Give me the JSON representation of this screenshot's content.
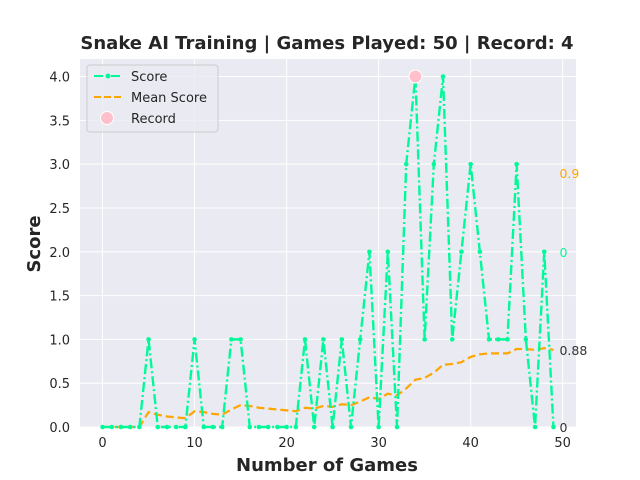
{
  "chart_data": {
    "type": "line",
    "title": "Snake AI Training | Games Played: 50 | Record: 4",
    "xlabel": "Number of Games",
    "ylabel": "Score",
    "xlim": [
      -2.45,
      51.45
    ],
    "ylim": [
      0,
      4.2
    ],
    "x_ticks": [
      0,
      10,
      20,
      30,
      40,
      50
    ],
    "y_ticks": [
      0.0,
      0.5,
      1.0,
      1.5,
      2.0,
      2.5,
      3.0,
      3.5,
      4.0
    ],
    "x_tick_labels": [
      "0",
      "10",
      "20",
      "30",
      "40",
      "50"
    ],
    "y_tick_labels": [
      "0.0",
      "0.5",
      "1.0",
      "1.5",
      "2.0",
      "2.5",
      "3.0",
      "3.5",
      "4.0"
    ],
    "grid": true,
    "legend_position": "top-left",
    "x": [
      0,
      1,
      2,
      3,
      4,
      5,
      6,
      7,
      8,
      9,
      10,
      11,
      12,
      13,
      14,
      15,
      16,
      17,
      18,
      19,
      20,
      21,
      22,
      23,
      24,
      25,
      26,
      27,
      28,
      29,
      30,
      31,
      32,
      33,
      34,
      35,
      36,
      37,
      38,
      39,
      40,
      41,
      42,
      43,
      44,
      45,
      46,
      47,
      48,
      49
    ],
    "series": [
      {
        "name": "Score",
        "color": "#00FA9A",
        "style": "dash-dot with point markers",
        "values": [
          0,
          0,
          0,
          0,
          0,
          1,
          0,
          0,
          0,
          0,
          1,
          0,
          0,
          0,
          1,
          1,
          0,
          0,
          0,
          0,
          0,
          0,
          1,
          0,
          1,
          0,
          1,
          0,
          1,
          2,
          0,
          2,
          0,
          3,
          4,
          1,
          3,
          4,
          1,
          2,
          3,
          2,
          1,
          1,
          1,
          3,
          1,
          0,
          2,
          0
        ]
      },
      {
        "name": "Mean Score",
        "color": "#FFA500",
        "style": "dashed",
        "values": [
          0,
          0,
          0,
          0,
          0,
          0.17,
          0.14,
          0.12,
          0.11,
          0.1,
          0.18,
          0.17,
          0.15,
          0.14,
          0.2,
          0.25,
          0.24,
          0.22,
          0.21,
          0.2,
          0.19,
          0.18,
          0.22,
          0.21,
          0.24,
          0.23,
          0.26,
          0.25,
          0.29,
          0.34,
          0.32,
          0.38,
          0.36,
          0.44,
          0.54,
          0.56,
          0.62,
          0.71,
          0.72,
          0.74,
          0.8,
          0.83,
          0.84,
          0.84,
          0.84,
          0.89,
          0.89,
          0.88,
          0.9,
          0.88
        ]
      }
    ],
    "record": {
      "name": "Record",
      "x": 34,
      "y": 4,
      "color": "#FFC0CB"
    },
    "annotations": [
      {
        "text": "0.9",
        "color": "#FFA500",
        "x": 49,
        "y": 2.9
      },
      {
        "text": "0",
        "color": "#00FA9A",
        "x": 49,
        "y": 2.0
      },
      {
        "text": "0.88",
        "color": "#333333",
        "x": 49,
        "y": 0.88
      },
      {
        "text": "0",
        "color": "#333333",
        "x": 49,
        "y": 0
      }
    ]
  }
}
